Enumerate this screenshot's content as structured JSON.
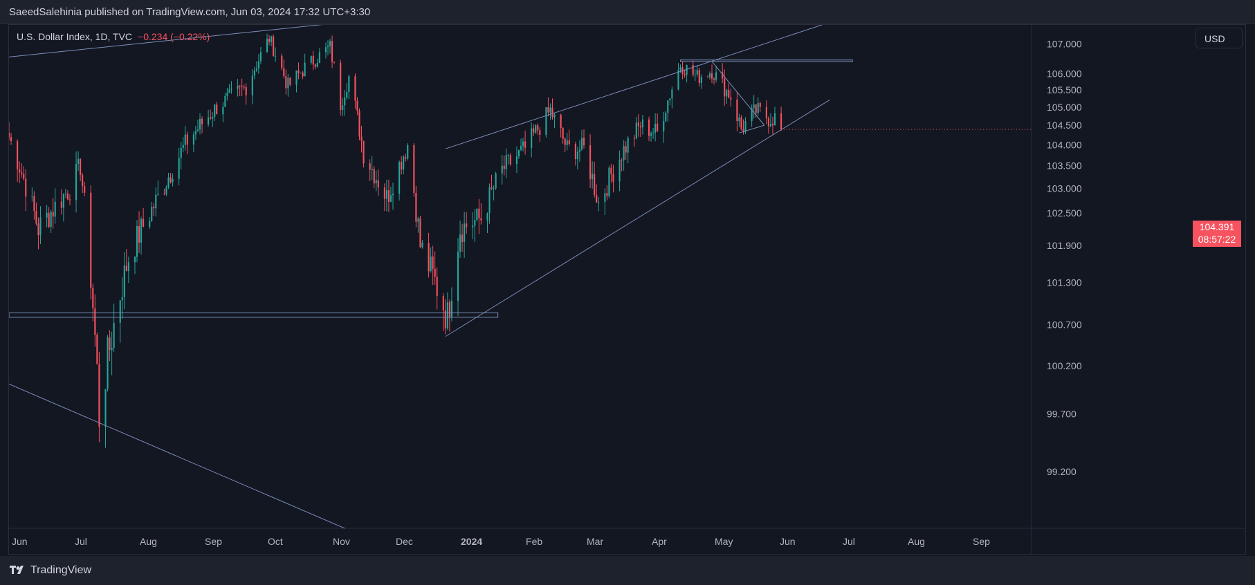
{
  "header": {
    "published": "SaeedSalehinia published on TradingView.com, Jun 03, 2024 17:32 UTC+3:30"
  },
  "legend": {
    "symbol": "U.S. Dollar Index, 1D, TVC",
    "change": "−0.234 (−0.22%)"
  },
  "currency_button": "USD",
  "price_tag": {
    "price": "104.391",
    "countdown": "08:57:22"
  },
  "footer": {
    "brand": "TradingView"
  },
  "colors": {
    "up": "#26a69a",
    "down": "#f7525f",
    "background": "#131722",
    "trendline": "#7b8fb8"
  },
  "chart_data": {
    "type": "candlestick",
    "title": "U.S. Dollar Index, 1D, TVC",
    "x_tick_labels": [
      "Jun",
      "Jul",
      "Aug",
      "Sep",
      "Oct",
      "Nov",
      "Dec",
      "2024",
      "Feb",
      "Mar",
      "Apr",
      "May",
      "Jun",
      "Jul",
      "Aug",
      "Sep"
    ],
    "y_tick_labels": [
      "107.000",
      "106.000",
      "105.500",
      "105.000",
      "104.500",
      "104.000",
      "103.500",
      "103.000",
      "102.500",
      "101.900",
      "101.300",
      "100.700",
      "100.200",
      "99.700",
      "99.200"
    ],
    "ylim": [
      98.8,
      107.7
    ],
    "x_range": [
      "2023-06-01",
      "2024-09-30"
    ],
    "last_price": 104.391,
    "anchors": [
      [
        "2023-06-01",
        104.2
      ],
      [
        "2023-06-15",
        102.2
      ],
      [
        "2023-06-30",
        103.0
      ],
      [
        "2023-07-05",
        103.5
      ],
      [
        "2023-07-14",
        99.7
      ],
      [
        "2023-07-28",
        101.7
      ],
      [
        "2023-08-11",
        102.8
      ],
      [
        "2023-08-25",
        104.1
      ],
      [
        "2023-09-08",
        105.0
      ],
      [
        "2023-09-22",
        105.6
      ],
      [
        "2023-10-03",
        107.2
      ],
      [
        "2023-10-12",
        105.6
      ],
      [
        "2023-10-20",
        106.2
      ],
      [
        "2023-10-27",
        106.6
      ],
      [
        "2023-11-01",
        106.9
      ],
      [
        "2023-11-06",
        105.1
      ],
      [
        "2023-11-10",
        105.9
      ],
      [
        "2023-11-17",
        103.8
      ],
      [
        "2023-11-28",
        102.8
      ],
      [
        "2023-12-08",
        104.0
      ],
      [
        "2023-12-14",
        101.9
      ],
      [
        "2023-12-27",
        100.8
      ],
      [
        "2024-01-02",
        102.2
      ],
      [
        "2024-01-12",
        102.4
      ],
      [
        "2024-01-22",
        103.4
      ],
      [
        "2024-02-02",
        103.9
      ],
      [
        "2024-02-14",
        104.9
      ],
      [
        "2024-02-22",
        103.9
      ],
      [
        "2024-03-01",
        103.9
      ],
      [
        "2024-03-08",
        102.7
      ],
      [
        "2024-03-19",
        103.8
      ],
      [
        "2024-03-28",
        104.5
      ],
      [
        "2024-04-05",
        104.3
      ],
      [
        "2024-04-10",
        105.2
      ],
      [
        "2024-04-16",
        106.3
      ],
      [
        "2024-04-24",
        105.9
      ],
      [
        "2024-05-01",
        106.1
      ],
      [
        "2024-05-10",
        105.3
      ],
      [
        "2024-05-15",
        104.4
      ],
      [
        "2024-05-22",
        104.9
      ],
      [
        "2024-05-28",
        104.7
      ],
      [
        "2024-05-31",
        104.7
      ],
      [
        "2024-06-03",
        104.391
      ]
    ]
  }
}
